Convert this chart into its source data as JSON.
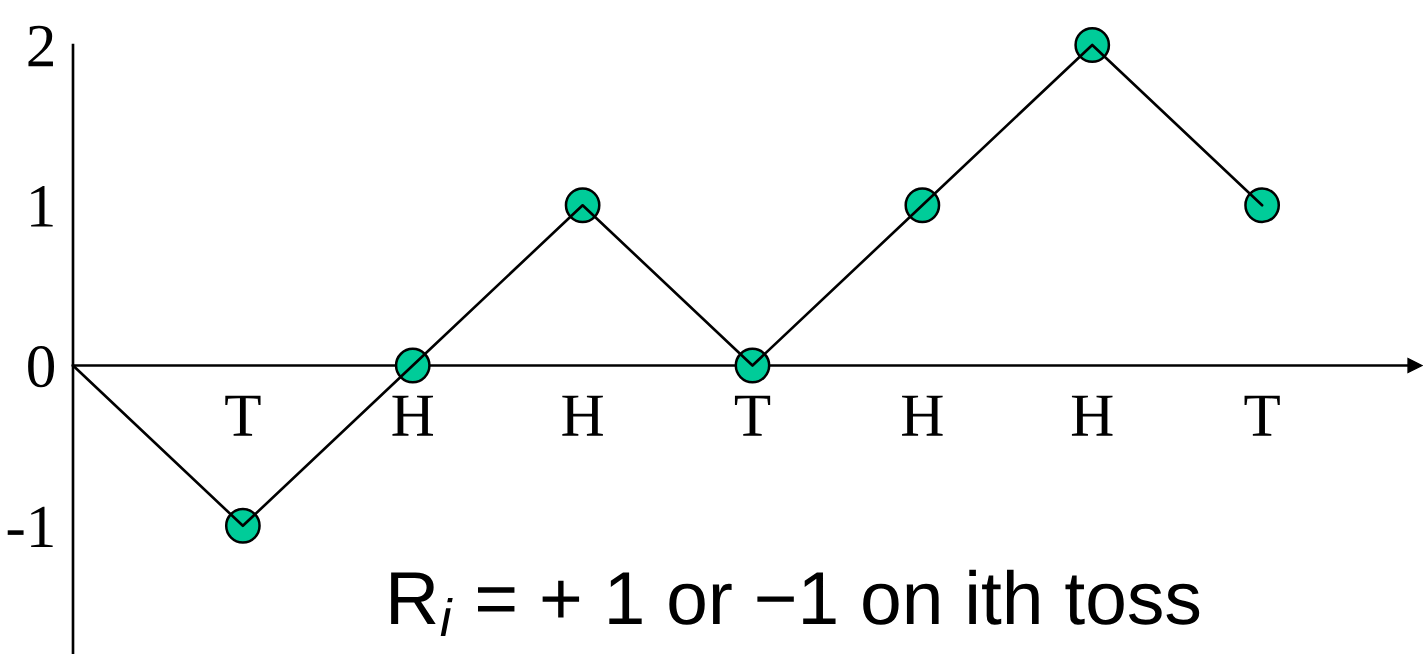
{
  "chart_data": {
    "type": "line",
    "categories": [
      null,
      "T",
      "H",
      "H",
      "T",
      "H",
      "H",
      "T"
    ],
    "series": [
      {
        "color": "#000000",
        "marker": "none",
        "values": [
          0,
          -1,
          0,
          1,
          0,
          1,
          2,
          1
        ]
      },
      {
        "type": "scatter",
        "color": "#00cc99",
        "marker": "circle",
        "values": [
          null,
          -1,
          0,
          1,
          0,
          1,
          2,
          1
        ]
      }
    ],
    "ylim": [
      -1.8,
      2
    ],
    "yticks": [
      2,
      1,
      0,
      -1
    ],
    "grid": false,
    "annotations": [
      "R$_{i}$ = + 1 or −1 on ith toss"
    ]
  }
}
